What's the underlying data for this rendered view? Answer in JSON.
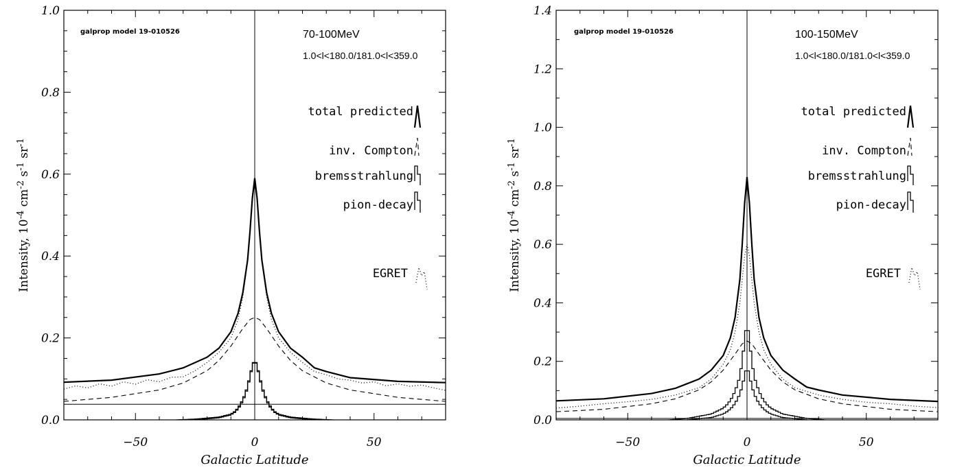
{
  "chart_data": [
    {
      "type": "line",
      "model_label": "galprop model 19-010526",
      "energy_label": "70-100MeV",
      "range_label": "1.0<l<180.0/181.0<l<359.0",
      "xlabel": "Galactic Latitude",
      "ylabel_parts": [
        "Intensity, 10",
        "-4",
        " cm",
        "-2",
        " s",
        "-1",
        " sr",
        "-1"
      ],
      "xlim": [
        -80,
        80
      ],
      "ylim": [
        0,
        1.0
      ],
      "xticks": [
        -50,
        0,
        50
      ],
      "xtick_labels": [
        "−50",
        "0",
        "50"
      ],
      "yticks": [
        0.0,
        0.2,
        0.4,
        0.6,
        0.8,
        1.0
      ],
      "ytick_labels": [
        "0.0",
        "0.2",
        "0.4",
        "0.6",
        "0.8",
        "1.0"
      ],
      "legend": [
        "total predicted",
        "inv. Compton",
        "bremsstrahlung",
        "pion-decay",
        "EGRET"
      ],
      "series": [
        {
          "name": "total predicted",
          "style": "solid-thick",
          "x": [
            -80,
            -60,
            -40,
            -30,
            -20,
            -15,
            -10,
            -7,
            -5,
            -3,
            -2,
            -1,
            0,
            1,
            2,
            3,
            5,
            7,
            10,
            15,
            20,
            25,
            30,
            40,
            60,
            80
          ],
          "y": [
            0.092,
            0.097,
            0.112,
            0.127,
            0.153,
            0.175,
            0.215,
            0.26,
            0.31,
            0.39,
            0.46,
            0.54,
            0.59,
            0.54,
            0.46,
            0.39,
            0.31,
            0.26,
            0.215,
            0.175,
            0.153,
            0.127,
            0.118,
            0.103,
            0.094,
            0.091
          ]
        },
        {
          "name": "EGRET",
          "style": "dotted",
          "x": [
            -80,
            -75,
            -70,
            -65,
            -60,
            -55,
            -50,
            -45,
            -40,
            -35,
            -30,
            -25,
            -20,
            -15,
            -10,
            -7,
            -5,
            -3,
            -2,
            -1,
            0,
            1,
            2,
            3,
            5,
            7,
            10,
            15,
            20,
            25,
            30,
            35,
            40,
            45,
            50,
            55,
            60,
            65,
            70,
            75,
            80
          ],
          "y": [
            0.075,
            0.083,
            0.078,
            0.088,
            0.082,
            0.093,
            0.087,
            0.098,
            0.093,
            0.104,
            0.105,
            0.12,
            0.14,
            0.165,
            0.2,
            0.245,
            0.3,
            0.39,
            0.46,
            0.55,
            0.585,
            0.55,
            0.46,
            0.39,
            0.3,
            0.245,
            0.2,
            0.165,
            0.14,
            0.118,
            0.11,
            0.1,
            0.097,
            0.09,
            0.093,
            0.083,
            0.088,
            0.082,
            0.085,
            0.078,
            0.072
          ]
        },
        {
          "name": "inv. Compton",
          "style": "dashed",
          "x": [
            -80,
            -60,
            -40,
            -30,
            -20,
            -15,
            -10,
            -5,
            -2,
            0,
            2,
            5,
            10,
            15,
            20,
            30,
            40,
            60,
            80
          ],
          "y": [
            0.045,
            0.055,
            0.073,
            0.09,
            0.12,
            0.145,
            0.18,
            0.223,
            0.245,
            0.25,
            0.245,
            0.223,
            0.18,
            0.145,
            0.12,
            0.09,
            0.073,
            0.055,
            0.045
          ]
        },
        {
          "name": "bremsstrahlung",
          "style": "step",
          "x": [
            -80,
            -60,
            -40,
            -25,
            -15,
            -10,
            -8,
            -6,
            -4,
            -3,
            -2,
            -1,
            0,
            1,
            2,
            3,
            4,
            6,
            8,
            10,
            15,
            25,
            40,
            60,
            80
          ],
          "y": [
            -0.01,
            -0.007,
            -0.003,
            0.0,
            0.005,
            0.012,
            0.02,
            0.035,
            0.06,
            0.08,
            0.105,
            0.13,
            0.15,
            0.13,
            0.105,
            0.08,
            0.06,
            0.035,
            0.02,
            0.012,
            0.005,
            0.0,
            -0.003,
            -0.007,
            -0.01
          ]
        },
        {
          "name": "pion-decay",
          "style": "step",
          "x": [
            -80,
            -60,
            -40,
            -25,
            -15,
            -10,
            -8,
            -6,
            -4,
            -3,
            -2,
            -1,
            0,
            1,
            2,
            3,
            4,
            6,
            8,
            10,
            15,
            25,
            40,
            60,
            80
          ],
          "y": [
            -0.008,
            -0.006,
            -0.002,
            0.002,
            0.007,
            0.014,
            0.022,
            0.038,
            0.063,
            0.083,
            0.108,
            0.132,
            0.145,
            0.132,
            0.108,
            0.083,
            0.063,
            0.038,
            0.022,
            0.014,
            0.007,
            0.002,
            -0.002,
            -0.006,
            -0.008
          ]
        },
        {
          "name": "background",
          "style": "thin",
          "x": [
            -80,
            80
          ],
          "y": [
            0.038,
            0.038
          ]
        }
      ]
    },
    {
      "type": "line",
      "model_label": "galprop model 19-010526",
      "energy_label": "100-150MeV",
      "range_label": "1.0<l<180.0/181.0<l<359.0",
      "xlabel": "Galactic Latitude",
      "ylabel_parts": [
        "Intensity, 10",
        "-4",
        " cm",
        "-2",
        " s",
        "-1",
        " sr",
        "-1"
      ],
      "xlim": [
        -80,
        80
      ],
      "ylim": [
        0,
        1.4
      ],
      "xticks": [
        -50,
        0,
        50
      ],
      "xtick_labels": [
        "−50",
        "0",
        "50"
      ],
      "yticks": [
        0.0,
        0.2,
        0.4,
        0.6,
        0.8,
        1.0,
        1.2,
        1.4
      ],
      "ytick_labels": [
        "0.0",
        "0.2",
        "0.4",
        "0.6",
        "0.8",
        "1.0",
        "1.2",
        "1.4"
      ],
      "legend": [
        "total predicted",
        "inv. Compton",
        "bremsstrahlung",
        "pion-decay",
        "EGRET"
      ],
      "series": [
        {
          "name": "total predicted",
          "style": "solid-thick",
          "x": [
            -80,
            -60,
            -40,
            -30,
            -20,
            -15,
            -10,
            -7,
            -5,
            -3,
            -2,
            -1,
            0,
            1,
            2,
            3,
            5,
            7,
            10,
            15,
            20,
            25,
            30,
            40,
            60,
            80
          ],
          "y": [
            0.065,
            0.072,
            0.09,
            0.108,
            0.14,
            0.17,
            0.22,
            0.28,
            0.35,
            0.48,
            0.6,
            0.74,
            0.83,
            0.74,
            0.6,
            0.48,
            0.35,
            0.28,
            0.22,
            0.17,
            0.14,
            0.112,
            0.102,
            0.085,
            0.07,
            0.063
          ]
        },
        {
          "name": "EGRET",
          "style": "dotted",
          "x": [
            -80,
            -70,
            -60,
            -50,
            -40,
            -30,
            -20,
            -15,
            -10,
            -7,
            -5,
            -3,
            -2,
            -1,
            0,
            1,
            2,
            3,
            5,
            7,
            10,
            15,
            20,
            30,
            40,
            50,
            60,
            70,
            80
          ],
          "y": [
            0.04,
            0.047,
            0.055,
            0.062,
            0.07,
            0.085,
            0.11,
            0.14,
            0.19,
            0.24,
            0.3,
            0.4,
            0.48,
            0.56,
            0.6,
            0.56,
            0.48,
            0.4,
            0.3,
            0.24,
            0.19,
            0.14,
            0.11,
            0.085,
            0.07,
            0.06,
            0.055,
            0.047,
            0.042
          ]
        },
        {
          "name": "inv. Compton",
          "style": "dashed",
          "x": [
            -80,
            -60,
            -40,
            -30,
            -20,
            -15,
            -10,
            -5,
            -2,
            0,
            2,
            5,
            10,
            15,
            20,
            30,
            40,
            60,
            80
          ],
          "y": [
            0.028,
            0.036,
            0.055,
            0.072,
            0.103,
            0.13,
            0.17,
            0.225,
            0.26,
            0.27,
            0.26,
            0.225,
            0.17,
            0.13,
            0.103,
            0.072,
            0.055,
            0.036,
            0.028
          ]
        },
        {
          "name": "bremsstrahlung",
          "style": "step",
          "x": [
            -80,
            -60,
            -40,
            -25,
            -15,
            -10,
            -8,
            -6,
            -4,
            -3,
            -2,
            -1,
            0,
            1,
            2,
            3,
            4,
            6,
            8,
            10,
            15,
            25,
            40,
            60,
            80
          ],
          "y": [
            -0.015,
            -0.012,
            -0.005,
            0.005,
            0.02,
            0.04,
            0.055,
            0.08,
            0.12,
            0.15,
            0.2,
            0.27,
            0.34,
            0.27,
            0.2,
            0.15,
            0.12,
            0.08,
            0.055,
            0.04,
            0.02,
            0.005,
            -0.005,
            -0.012,
            -0.015
          ]
        },
        {
          "name": "pion-decay",
          "style": "step",
          "x": [
            -80,
            -60,
            -40,
            -25,
            -15,
            -10,
            -8,
            -6,
            -4,
            -3,
            -2,
            -1,
            0,
            1,
            2,
            3,
            4,
            6,
            8,
            10,
            15,
            25,
            40,
            60,
            80
          ],
          "y": [
            -0.012,
            -0.01,
            -0.006,
            0.0,
            0.008,
            0.02,
            0.03,
            0.045,
            0.07,
            0.09,
            0.115,
            0.15,
            0.185,
            0.15,
            0.115,
            0.09,
            0.07,
            0.045,
            0.03,
            0.02,
            0.008,
            0.0,
            -0.006,
            -0.01,
            -0.012
          ]
        },
        {
          "name": "background",
          "style": "thin",
          "x": [
            -80,
            80
          ],
          "y": [
            0.005,
            0.005
          ]
        }
      ]
    }
  ]
}
